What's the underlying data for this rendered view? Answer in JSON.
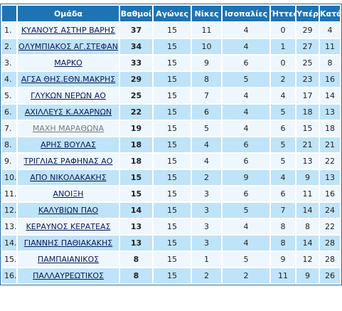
{
  "table": {
    "headers": [
      "",
      "Ομάδα",
      "Βαθμοί",
      "Αγώνες",
      "Νίκες",
      "Ισοπαλίες",
      "Ήττες",
      "Υπέρ",
      "Κατά"
    ],
    "rows": [
      {
        "pos": "1.",
        "team": "ΚΥΑΝΟΥΣ ΑΣΤΗΡ ΒΑΡΗΣ",
        "pts": "37",
        "played": "15",
        "wins": "11",
        "draws": "4",
        "losses": "0",
        "gf": "29",
        "ga": "4"
      },
      {
        "pos": "2.",
        "team": "ΟΛΥΜΠΙΑΚΟΣ ΑΓ.ΣΤΕΦΑΝ",
        "pts": "34",
        "played": "15",
        "wins": "10",
        "draws": "4",
        "losses": "1",
        "gf": "27",
        "ga": "11"
      },
      {
        "pos": "3.",
        "team": "ΜΑΡΚΟ",
        "pts": "33",
        "played": "15",
        "wins": "9",
        "draws": "6",
        "losses": "0",
        "gf": "25",
        "ga": "8"
      },
      {
        "pos": "4.",
        "team": "ΑΓΣΑ ΘΗΣ.ΕΘΝ.ΜΑΚΡΗΣ",
        "pts": "29",
        "played": "15",
        "wins": "8",
        "draws": "5",
        "losses": "2",
        "gf": "23",
        "ga": "16"
      },
      {
        "pos": "5.",
        "team": "ΓΛΥΚΩΝ ΝΕΡΩΝ ΑΟ",
        "pts": "25",
        "played": "15",
        "wins": "7",
        "draws": "4",
        "losses": "4",
        "gf": "17",
        "ga": "14"
      },
      {
        "pos": "6.",
        "team": "ΑΧΙΛΛΕΥΣ Κ.ΑΧΑΡΝΩΝ",
        "pts": "22",
        "played": "15",
        "wins": "6",
        "draws": "4",
        "losses": "5",
        "gf": "18",
        "ga": "13"
      },
      {
        "pos": "7.",
        "team": "ΜΑΧΗ ΜΑΡΑΘΩΝΑ",
        "pts": "19",
        "played": "15",
        "wins": "5",
        "draws": "4",
        "losses": "6",
        "gf": "15",
        "ga": "18",
        "visited": true
      },
      {
        "pos": "8.",
        "team": "ΑΡΗΣ ΒΟΥΛΑΣ",
        "pts": "18",
        "played": "15",
        "wins": "4",
        "draws": "6",
        "losses": "5",
        "gf": "21",
        "ga": "21"
      },
      {
        "pos": "9.",
        "team": "ΤΡΙΓΛΙΑΣ ΡΑΦΗΝΑΣ ΑΟ",
        "pts": "18",
        "played": "15",
        "wins": "4",
        "draws": "6",
        "losses": "5",
        "gf": "13",
        "ga": "22"
      },
      {
        "pos": "10.",
        "team": "ΑΠΟ ΝΙΚΟΛΑΚΑΚΗΣ",
        "pts": "15",
        "played": "15",
        "wins": "2",
        "draws": "9",
        "losses": "4",
        "gf": "9",
        "ga": "13"
      },
      {
        "pos": "11.",
        "team": "ΑΝΟΙΞΗ",
        "pts": "15",
        "played": "15",
        "wins": "3",
        "draws": "6",
        "losses": "6",
        "gf": "11",
        "ga": "16"
      },
      {
        "pos": "12.",
        "team": "ΚΑΛΥΒΙΩΝ ΠΑΟ",
        "pts": "14",
        "played": "15",
        "wins": "3",
        "draws": "5",
        "losses": "7",
        "gf": "14",
        "ga": "24"
      },
      {
        "pos": "13.",
        "team": "ΚΕΡΑΥΝΟΣ ΚΕΡΑΤΕΑΣ",
        "pts": "13",
        "played": "15",
        "wins": "3",
        "draws": "4",
        "losses": "8",
        "gf": "8",
        "ga": "22"
      },
      {
        "pos": "14.",
        "team": "ΓΙΑΝΝΗΣ ΠΑΘΙΑΚΑΚΗΣ",
        "pts": "13",
        "played": "15",
        "wins": "3",
        "draws": "4",
        "losses": "8",
        "gf": "14",
        "ga": "28"
      },
      {
        "pos": "15.",
        "team": "ΠΑΜΠΑΙΑΝΙΚΟΣ",
        "pts": "8",
        "played": "15",
        "wins": "1",
        "draws": "5",
        "losses": "9",
        "gf": "12",
        "ga": "28"
      },
      {
        "pos": "16.",
        "team": "ΠΑΛΛΑΥΡΕΩΤΙΚΟΣ",
        "pts": "8",
        "played": "15",
        "wins": "2",
        "draws": "2",
        "losses": "11",
        "gf": "9",
        "ga": "26"
      }
    ]
  }
}
